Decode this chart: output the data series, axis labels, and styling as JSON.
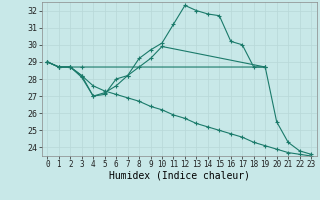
{
  "background_color": "#c8e8e8",
  "grid_color": "#b8d8d8",
  "line_color": "#1a7a6a",
  "xlabel": "Humidex (Indice chaleur)",
  "xlim": [
    -0.5,
    23.5
  ],
  "ylim": [
    23.5,
    32.5
  ],
  "yticks": [
    24,
    25,
    26,
    27,
    28,
    29,
    30,
    31,
    32
  ],
  "xticks": [
    0,
    1,
    2,
    3,
    4,
    5,
    6,
    7,
    8,
    9,
    10,
    11,
    12,
    13,
    14,
    15,
    16,
    17,
    18,
    19,
    20,
    21,
    22,
    23
  ],
  "lines": [
    {
      "x": [
        0,
        1,
        2,
        3,
        4,
        5,
        6,
        7,
        8,
        9,
        10,
        11,
        12,
        13,
        14,
        15,
        16,
        17,
        18,
        19,
        20,
        21,
        22,
        23
      ],
      "y": [
        29.0,
        28.7,
        28.7,
        28.1,
        27.0,
        27.1,
        28.0,
        28.2,
        29.2,
        29.7,
        30.1,
        31.2,
        32.3,
        32.0,
        31.8,
        31.7,
        30.2,
        30.0,
        28.7,
        28.7,
        25.5,
        24.3,
        23.8,
        23.6
      ]
    },
    {
      "x": [
        0,
        1,
        2,
        3,
        19
      ],
      "y": [
        29.0,
        28.7,
        28.7,
        28.7,
        28.7
      ]
    },
    {
      "x": [
        0,
        1,
        2,
        3,
        4,
        5,
        6,
        7,
        8,
        9,
        10,
        19
      ],
      "y": [
        29.0,
        28.7,
        28.7,
        28.2,
        27.0,
        27.2,
        27.6,
        28.2,
        28.7,
        29.2,
        29.9,
        28.7
      ]
    },
    {
      "x": [
        0,
        1,
        2,
        3,
        4,
        5,
        6,
        7,
        8,
        9,
        10,
        11,
        12,
        13,
        14,
        15,
        16,
        17,
        18,
        19,
        20,
        21,
        22,
        23
      ],
      "y": [
        29.0,
        28.7,
        28.7,
        28.2,
        27.6,
        27.3,
        27.1,
        26.9,
        26.7,
        26.4,
        26.2,
        25.9,
        25.7,
        25.4,
        25.2,
        25.0,
        24.8,
        24.6,
        24.3,
        24.1,
        23.9,
        23.7,
        23.6,
        23.5
      ]
    }
  ]
}
